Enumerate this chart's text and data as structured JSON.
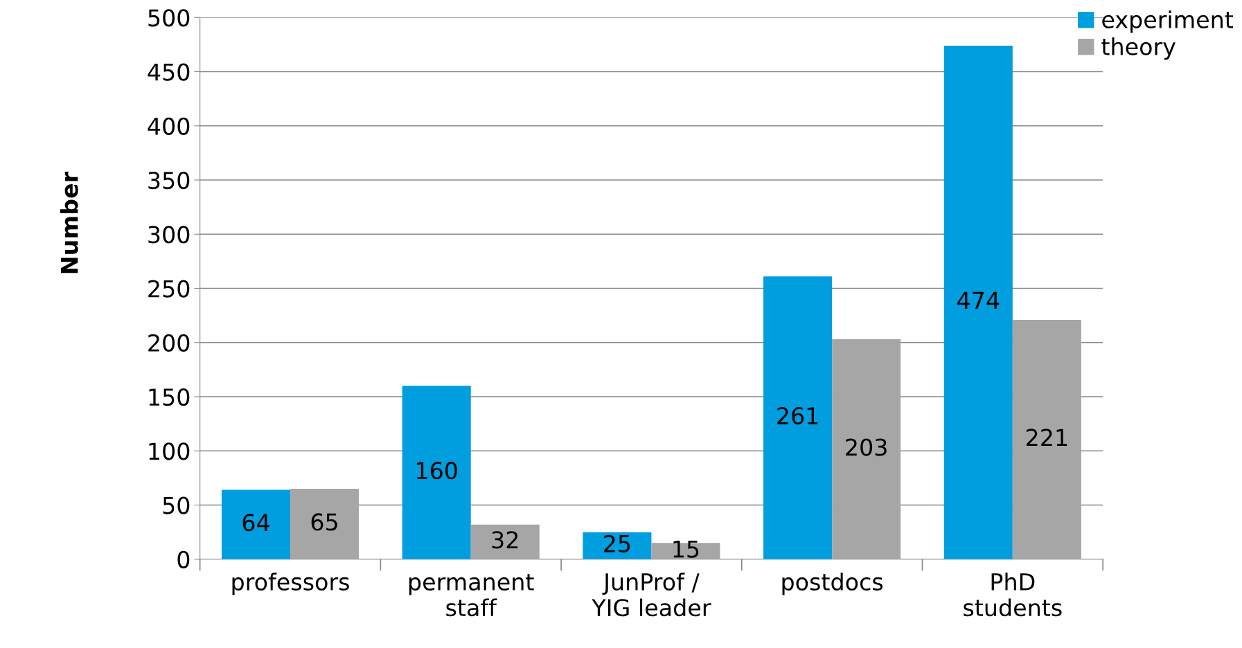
{
  "chart_data": {
    "type": "bar",
    "ylabel": "Number",
    "categories": [
      "professors",
      "permanent\nstaff",
      "JunProf /\nYIG leader",
      "postdocs",
      "PhD\nstudents"
    ],
    "series": [
      {
        "name": "experiment",
        "color": "#009ddf",
        "values": [
          64,
          160,
          25,
          261,
          474
        ]
      },
      {
        "name": "theory",
        "color": "#a6a6a6",
        "values": [
          65,
          32,
          15,
          203,
          221
        ]
      }
    ],
    "ylim": [
      0,
      500
    ],
    "yticks": [
      0,
      50,
      100,
      150,
      200,
      250,
      300,
      350,
      400,
      450,
      500
    ],
    "grid": "y",
    "legend": "top right",
    "data_labels": true
  }
}
